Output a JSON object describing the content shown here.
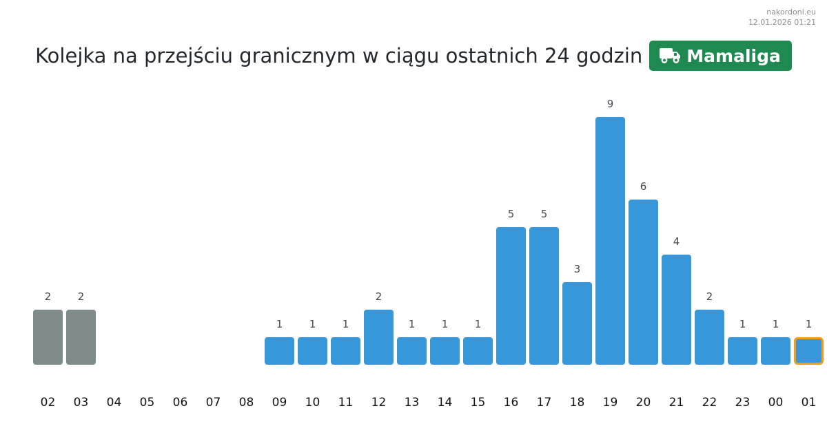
{
  "source": {
    "site": "nakordoni.eu",
    "timestamp": "12.01.2026 01:21"
  },
  "header": {
    "title": "Kolejka na przejściu granicznym w ciągu ostatnich 24 godzin",
    "crossing_name": "Mamaliga",
    "crossing_icon": "truck-icon",
    "badge_color": "#1e8a52"
  },
  "colors": {
    "past_bar": "#7f8b8b",
    "bar": "#3797da",
    "current_outline": "#f0a012"
  },
  "chart_data": {
    "type": "bar",
    "title": "Kolejka na przejściu granicznym w ciągu ostatnich 24 godzin",
    "xlabel": "",
    "ylabel": "",
    "categories": [
      "02",
      "03",
      "04",
      "05",
      "06",
      "07",
      "08",
      "09",
      "10",
      "11",
      "12",
      "13",
      "14",
      "15",
      "16",
      "17",
      "18",
      "19",
      "20",
      "21",
      "22",
      "23",
      "00",
      "01"
    ],
    "values": [
      2,
      2,
      0,
      0,
      0,
      0,
      0,
      1,
      1,
      1,
      2,
      1,
      1,
      1,
      5,
      5,
      3,
      9,
      6,
      4,
      2,
      1,
      1,
      1
    ],
    "grey_bars": [
      "02",
      "03"
    ],
    "highlighted": "01",
    "ylim": [
      0,
      9
    ],
    "grid": false,
    "legend": "none",
    "data_labels": true
  }
}
